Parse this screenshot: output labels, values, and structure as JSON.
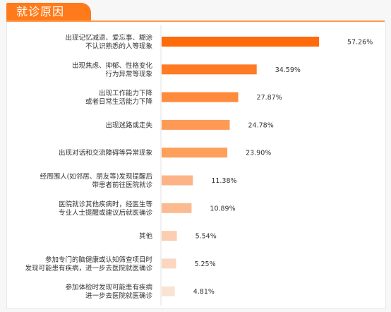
{
  "header": {
    "title": "就诊原因"
  },
  "colors": {
    "accent": "#ff7a1a",
    "bar_scale": [
      "#ff6a0a",
      "#fbe6da"
    ]
  },
  "chart_data": {
    "type": "bar",
    "orientation": "horizontal",
    "title": "就诊原因",
    "xlabel": "",
    "ylabel": "",
    "xlim": [
      0,
      60
    ],
    "grid": false,
    "categories": [
      [
        "出现记忆减退、爱忘事、糊涂",
        "不认识熟悉的人等现象"
      ],
      [
        "出现焦虑、抑郁、性格变化",
        "行为异常等现象"
      ],
      [
        "出现工作能力下降",
        "或者日常生活能力下降"
      ],
      [
        "出现迷路或走失"
      ],
      [
        "出现对话和交流障碍等异常现象"
      ],
      [
        "经周围人(如邻居、朋友等)发现提醒后",
        "带患者前往医院就诊"
      ],
      [
        "医院就诊其他疾病时，经医生等",
        "专业人士提醒或建议后就医确诊"
      ],
      [
        "其他"
      ],
      [
        "参加专门的脑健康或认知筛查项目时",
        "发现可能患有疾病，进一步去医院就医确诊"
      ],
      [
        "参加体检时发现可能患有疾病",
        "进一步去医院就医确诊"
      ]
    ],
    "values": [
      57.26,
      34.59,
      27.87,
      24.78,
      23.9,
      11.38,
      10.89,
      5.54,
      5.25,
      4.81
    ],
    "value_labels": [
      "57.26%",
      "34.59%",
      "27.87%",
      "24.78%",
      "23.90%",
      "11.38%",
      "10.89%",
      "5.54%",
      "5.25%",
      "4.81%"
    ],
    "bar_colors": [
      "#ff6a0a",
      "#ff7a24",
      "#ff8a3c",
      "#ff9a55",
      "#ff9f5c",
      "#fcb487",
      "#fcba90",
      "#fccdb0",
      "#fcd6bf",
      "#fbe3d4"
    ]
  }
}
